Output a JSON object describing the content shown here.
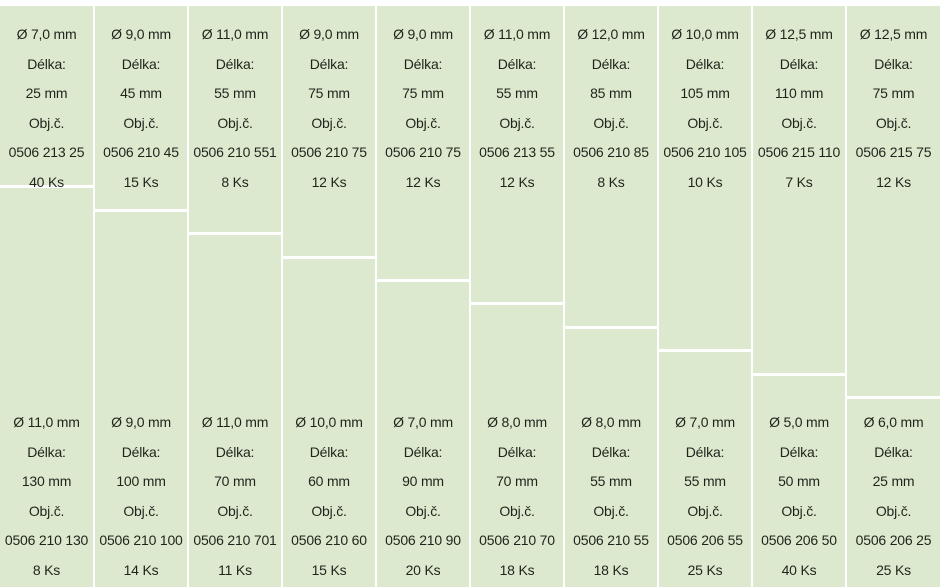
{
  "columns": [
    {
      "top": {
        "diameter": "Ø 7,0 mm",
        "length_label": "Délka:",
        "length": "25 mm",
        "order_label": "Obj.č.",
        "order_no": "0506 213 25",
        "qty": "40 Ks"
      },
      "bottom": {
        "diameter": "Ø 11,0 mm",
        "length_label": "Délka:",
        "length": "130 mm",
        "order_label": "Obj.č.",
        "order_no": "0506 210 130",
        "qty": "8 Ks"
      }
    },
    {
      "top": {
        "diameter": "Ø 9,0 mm",
        "length_label": "Délka:",
        "length": "45 mm",
        "order_label": "Obj.č.",
        "order_no": "0506 210 45",
        "qty": "15 Ks"
      },
      "bottom": {
        "diameter": "Ø 9,0 mm",
        "length_label": "Délka:",
        "length": "100 mm",
        "order_label": "Obj.č.",
        "order_no": "0506 210 100",
        "qty": "14 Ks"
      }
    },
    {
      "top": {
        "diameter": "Ø 11,0 mm",
        "length_label": "Délka:",
        "length": "55 mm",
        "order_label": "Obj.č.",
        "order_no": "0506 210 551",
        "qty": "8 Ks"
      },
      "bottom": {
        "diameter": "Ø 11,0 mm",
        "length_label": "Délka:",
        "length": "70 mm",
        "order_label": "Obj.č.",
        "order_no": "0506 210 701",
        "qty": "11 Ks"
      }
    },
    {
      "top": {
        "diameter": "Ø 9,0 mm",
        "length_label": "Délka:",
        "length": "75 mm",
        "order_label": "Obj.č.",
        "order_no": "0506 210 75",
        "qty": "12 Ks"
      },
      "bottom": {
        "diameter": "Ø 10,0 mm",
        "length_label": "Délka:",
        "length": "60 mm",
        "order_label": "Obj.č.",
        "order_no": "0506 210 60",
        "qty": "15 Ks"
      }
    },
    {
      "top": {
        "diameter": "Ø 9,0 mm",
        "length_label": "Délka:",
        "length": "75 mm",
        "order_label": "Obj.č.",
        "order_no": "0506 210 75",
        "qty": "12 Ks"
      },
      "bottom": {
        "diameter": "Ø 7,0 mm",
        "length_label": "Délka:",
        "length": "90 mm",
        "order_label": "Obj.č.",
        "order_no": "0506 210 90",
        "qty": "20 Ks"
      }
    },
    {
      "top": {
        "diameter": "Ø 11,0 mm",
        "length_label": "Délka:",
        "length": "55 mm",
        "order_label": "Obj.č.",
        "order_no": "0506 213 55",
        "qty": "12 Ks"
      },
      "bottom": {
        "diameter": "Ø 8,0 mm",
        "length_label": "Délka:",
        "length": "70 mm",
        "order_label": "Obj.č.",
        "order_no": "0506 210 70",
        "qty": "18 Ks"
      }
    },
    {
      "top": {
        "diameter": "Ø 12,0 mm",
        "length_label": "Délka:",
        "length": "85 mm",
        "order_label": "Obj.č.",
        "order_no": "0506 210 85",
        "qty": "8 Ks"
      },
      "bottom": {
        "diameter": "Ø 8,0 mm",
        "length_label": "Délka:",
        "length": "55 mm",
        "order_label": "Obj.č.",
        "order_no": "0506 210 55",
        "qty": "18 Ks"
      }
    },
    {
      "top": {
        "diameter": "Ø 10,0 mm",
        "length_label": "Délka:",
        "length": "105 mm",
        "order_label": "Obj.č.",
        "order_no": "0506 210 105",
        "qty": "10 Ks"
      },
      "bottom": {
        "diameter": "Ø 7,0 mm",
        "length_label": "Délka:",
        "length": "55 mm",
        "order_label": "Obj.č.",
        "order_no": "0506 206 55",
        "qty": "25 Ks"
      }
    },
    {
      "top": {
        "diameter": "Ø 12,5 mm",
        "length_label": "Délka:",
        "length": "110 mm",
        "order_label": "Obj.č.",
        "order_no": "0506 215 110",
        "qty": "7 Ks"
      },
      "bottom": {
        "diameter": "Ø 5,0 mm",
        "length_label": "Délka:",
        "length": "50 mm",
        "order_label": "Obj.č.",
        "order_no": "0506 206 50",
        "qty": "40 Ks"
      }
    },
    {
      "top": {
        "diameter": "Ø 12,5 mm",
        "length_label": "Délka:",
        "length": "75 mm",
        "order_label": "Obj.č.",
        "order_no": "0506 215 75",
        "qty": "12 Ks"
      },
      "bottom": {
        "diameter": "Ø 6,0 mm",
        "length_label": "Délka:",
        "length": "25 mm",
        "order_label": "Obj.č.",
        "order_no": "0506 206 25",
        "qty": "25 Ks"
      }
    }
  ],
  "colors": {
    "compartment": "#dde9cf",
    "divider": "#ffffff",
    "text": "#1f241b"
  }
}
